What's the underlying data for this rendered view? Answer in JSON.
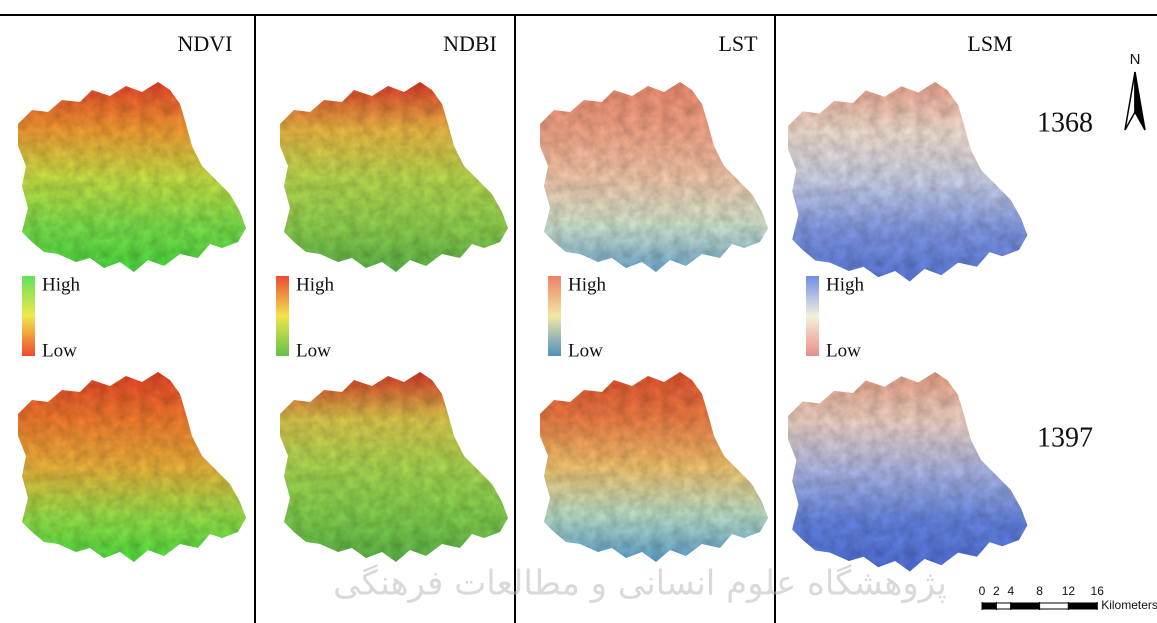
{
  "panels": [
    {
      "title": "NDVI",
      "legend_high": "High",
      "legend_low": "Low",
      "legend_colors": [
        "#5ee35a",
        "#f0e84a",
        "#ef4a2e"
      ],
      "map_top": [
        "#e8442c",
        "#f09a32",
        "#c8df45",
        "#7bdc4a",
        "#48d83f"
      ],
      "map_bottom": [
        "#e54428",
        "#ef7a2e",
        "#e9b23a",
        "#98dc48",
        "#4cdd3f"
      ]
    },
    {
      "title": "NDBI",
      "legend_high": "High",
      "legend_low": "Low",
      "legend_colors": [
        "#ea4b34",
        "#f2e34c",
        "#62c24a"
      ],
      "map_top": [
        "#de3a2c",
        "#e9b543",
        "#b8d84e",
        "#8fce4e",
        "#5cb447"
      ],
      "map_bottom": [
        "#d9382a",
        "#d8c54b",
        "#a8d650",
        "#80cc4c",
        "#5cb447"
      ]
    },
    {
      "title": "LST",
      "legend_high": "High",
      "legend_low": "Low",
      "legend_colors": [
        "#ee8067",
        "#f2e8a4",
        "#4f8fbf"
      ],
      "map_top": [
        "#ee8b6e",
        "#f0a285",
        "#f2c6a8",
        "#cfe2cc",
        "#6ea8cf"
      ],
      "map_bottom": [
        "#e2522e",
        "#eb7d45",
        "#f0c36d",
        "#b9dcc4",
        "#5a9fcf"
      ]
    },
    {
      "title": "LSM",
      "legend_high": "High",
      "legend_low": "Low",
      "legend_colors": [
        "#6f8fe6",
        "#f3efdc",
        "#ea8f86"
      ],
      "map_top": [
        "#eba28e",
        "#efdccc",
        "#c7cfe7",
        "#7d95e2",
        "#5b79dc"
      ],
      "map_bottom": [
        "#e99f86",
        "#ecd0c2",
        "#a9b5e4",
        "#6382de",
        "#4f6fd9"
      ]
    }
  ],
  "years": [
    "1368",
    "1397"
  ],
  "north": "N",
  "scale_bar": {
    "ticks": [
      0,
      2,
      4,
      8,
      12,
      16
    ],
    "unit": "Kilometers"
  },
  "watermark": "پژوهشگاه علوم انسانی و مطالعات فرهنگی"
}
